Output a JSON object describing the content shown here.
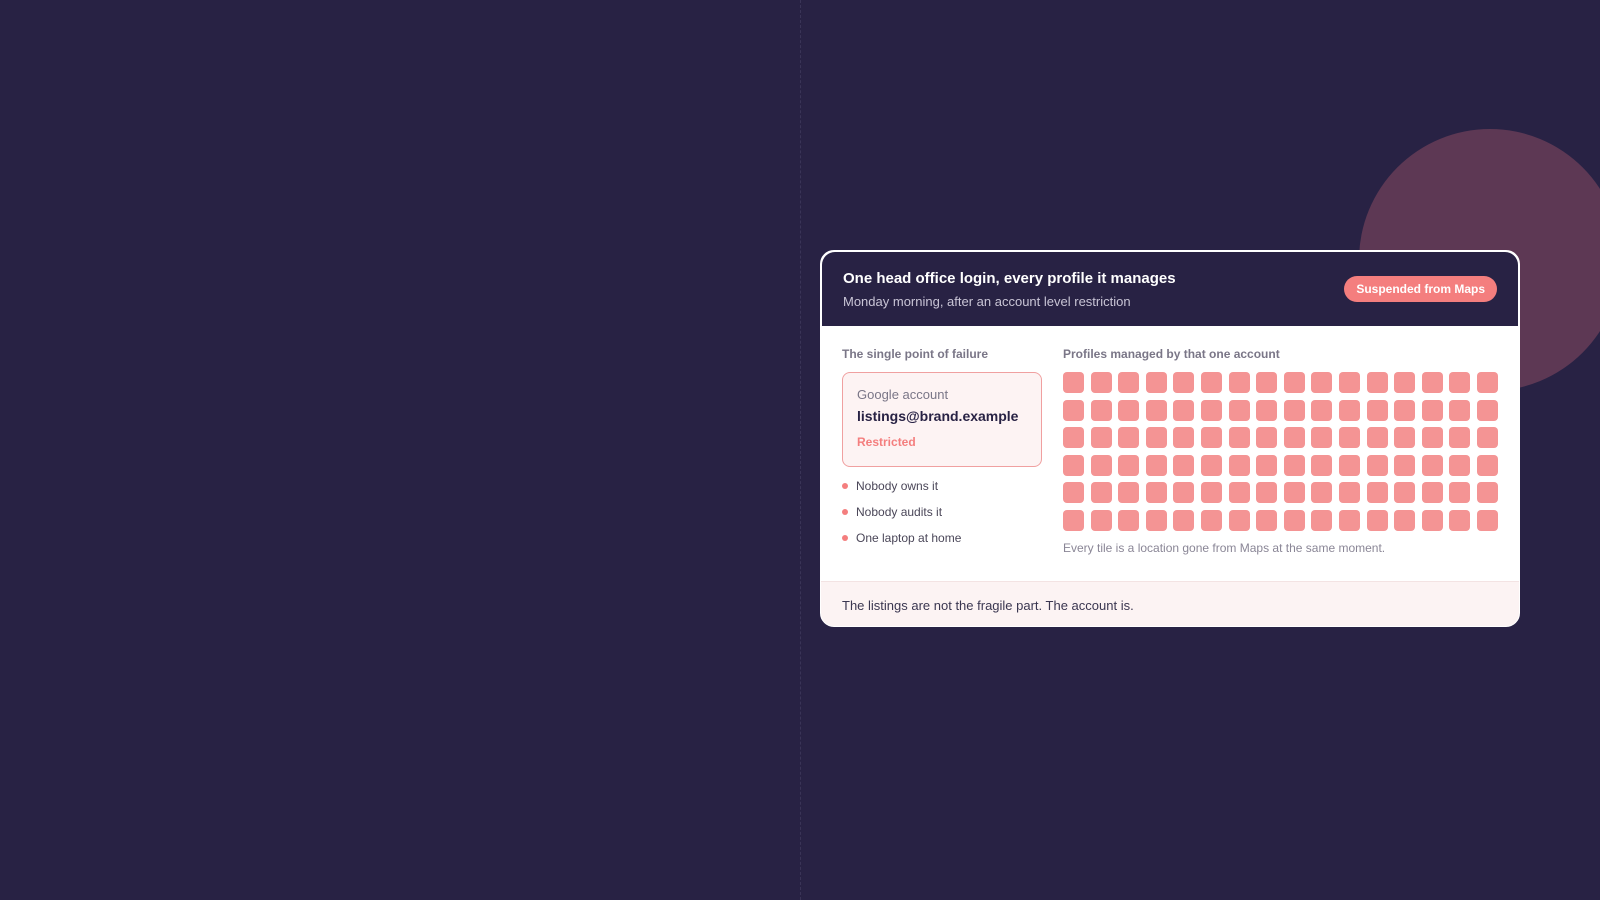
{
  "card": {
    "title": "One head office login, every profile it manages",
    "subtitle": "Monday morning, after an account level restriction",
    "badge": "Suspended from Maps"
  },
  "left_panel": {
    "label": "The single point of failure",
    "account": {
      "kicker": "Google account",
      "email": "listings@brand.example",
      "status": "Restricted"
    },
    "bullets": [
      "Nobody owns it",
      "Nobody audits it",
      "One laptop at home"
    ]
  },
  "right_panel": {
    "label": "Profiles managed by that one account",
    "tile_rows": 6,
    "tile_columns": 16,
    "tile_count": 96,
    "caption": "Every tile is a location gone from Maps at the same moment."
  },
  "footer": {
    "text": "The listings are not the fragile part. The account is."
  },
  "colors": {
    "background": "#282244",
    "accent": "#f47e7e",
    "tile": "#f49494",
    "decorative_circle": "#5d3854"
  }
}
